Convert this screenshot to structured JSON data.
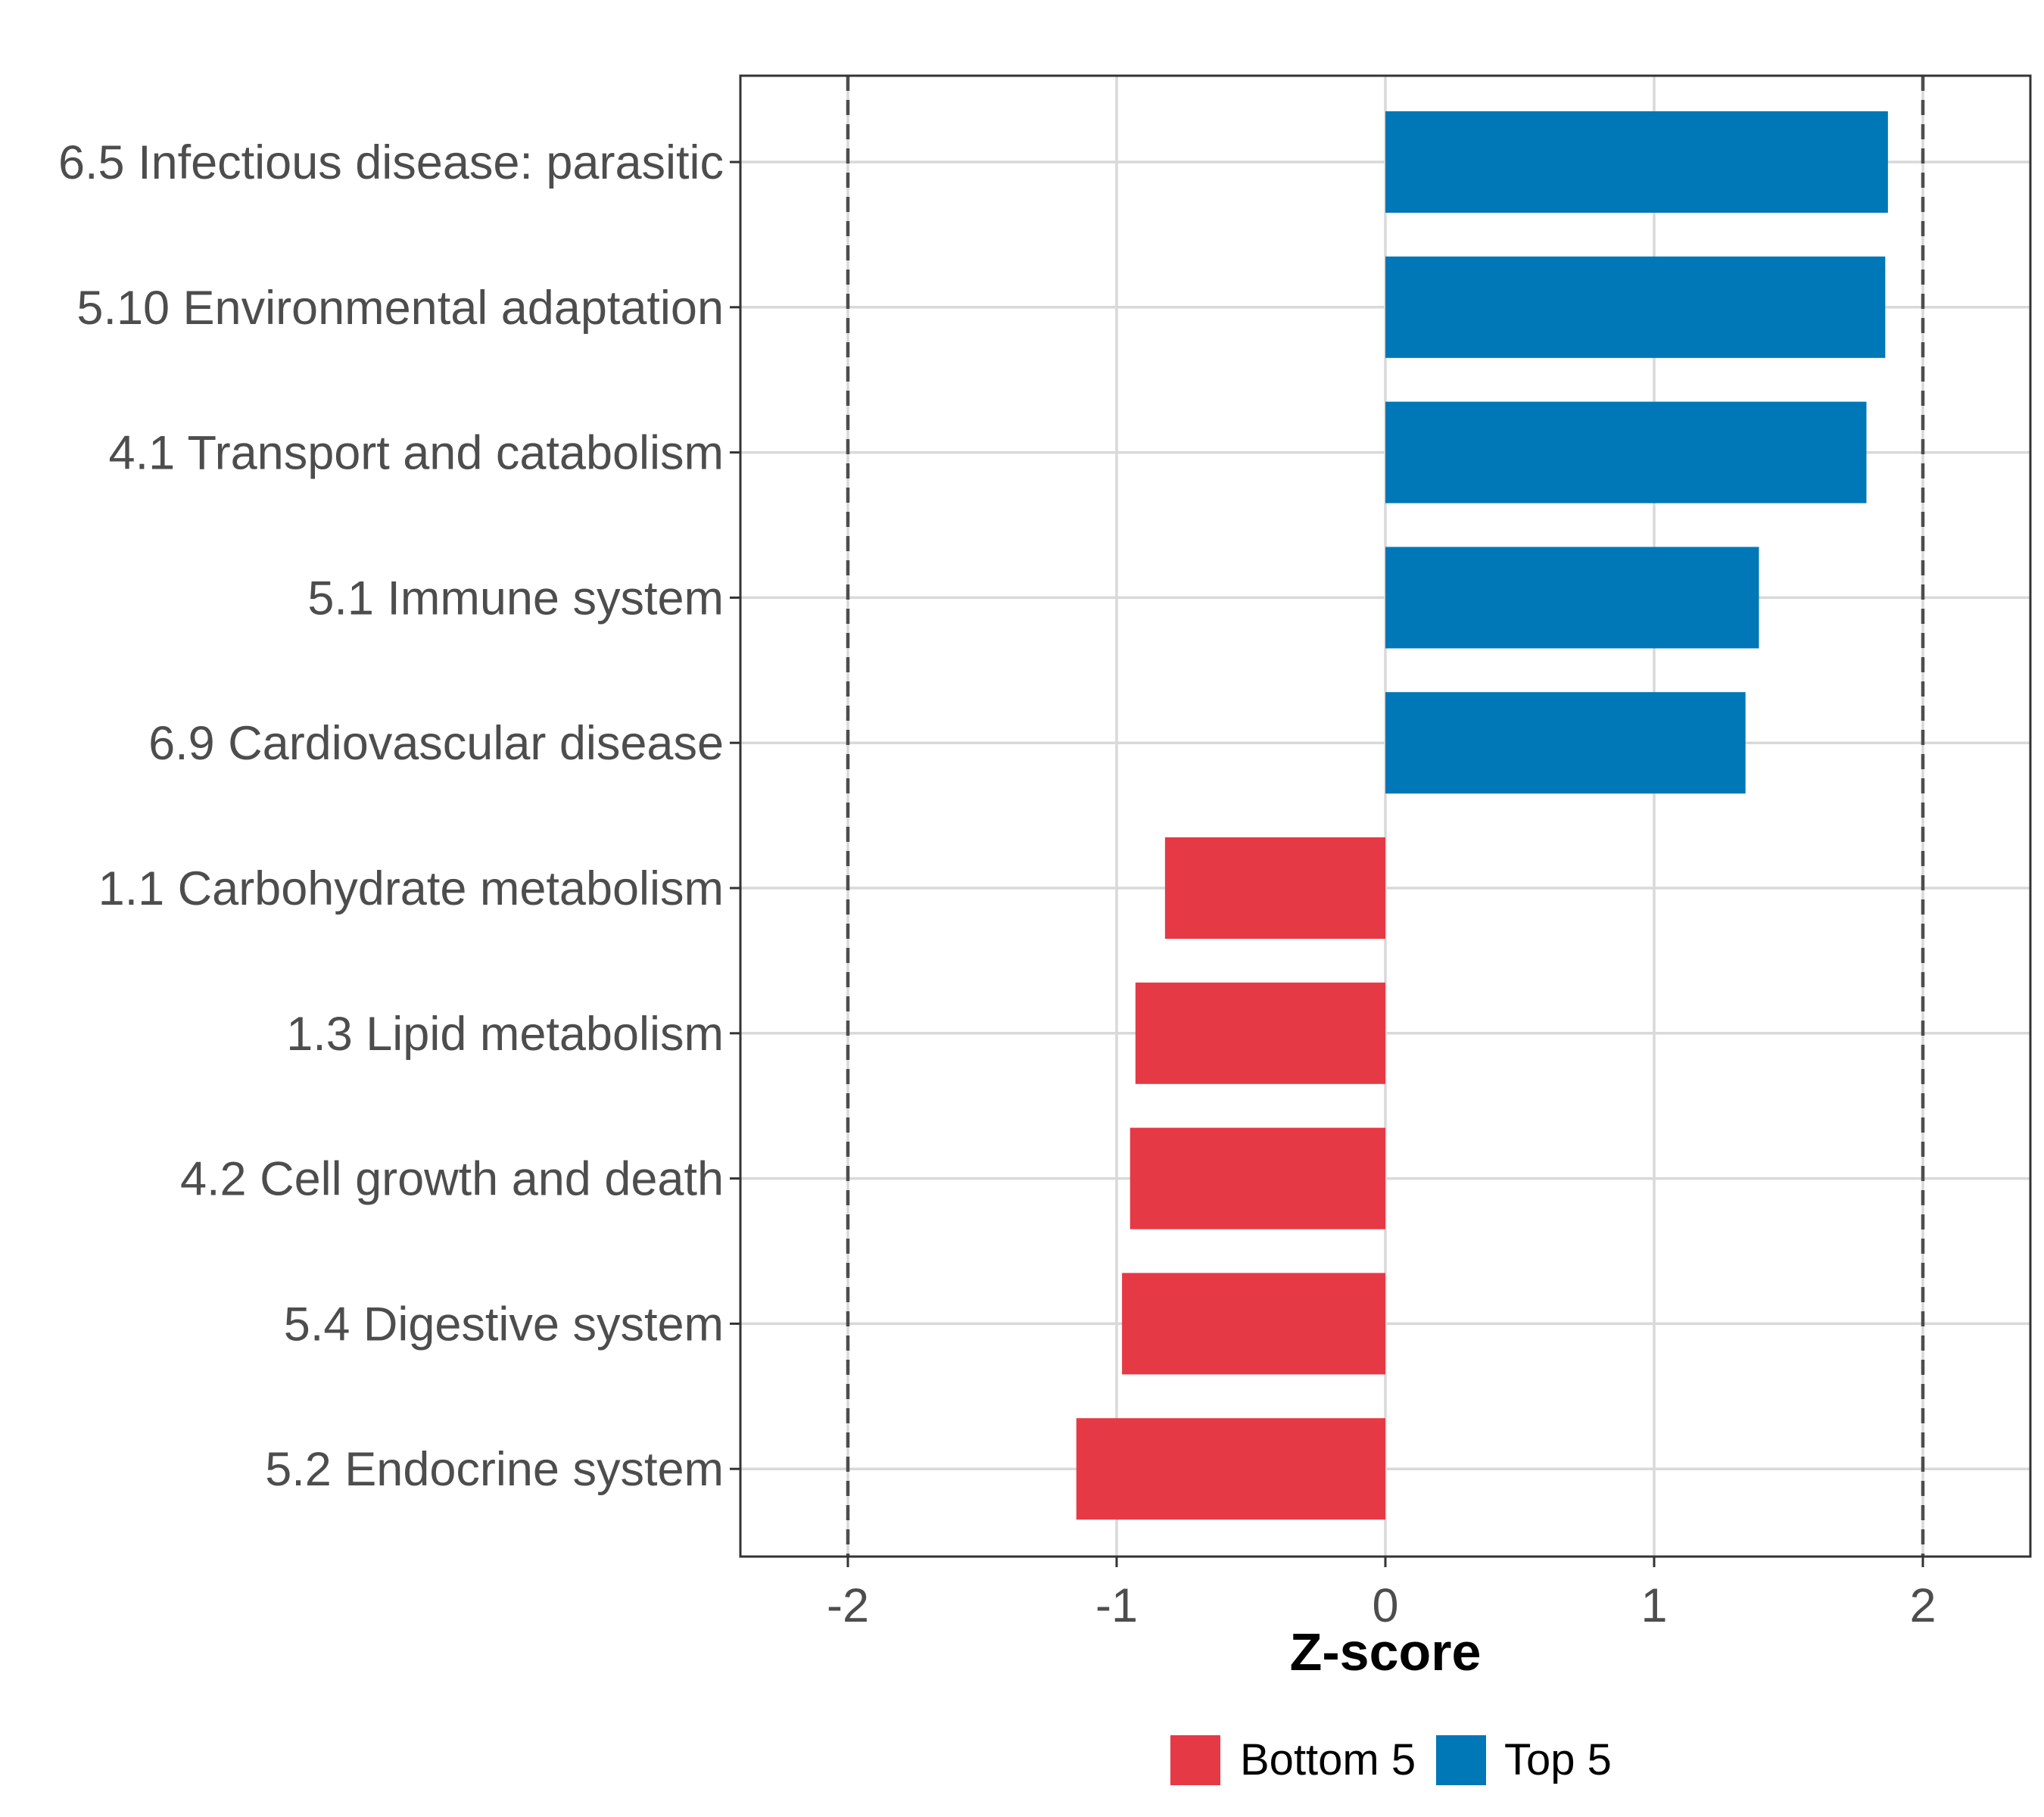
{
  "chart_data": {
    "type": "bar",
    "orientation": "horizontal",
    "title": "",
    "xlabel": "Z-score",
    "ylabel": "",
    "xlim": [
      -2.4,
      2.4
    ],
    "xticks": [
      -2,
      -1,
      0,
      1,
      2
    ],
    "xtick_labels": [
      "-2",
      "-1",
      "0",
      "1",
      "2"
    ],
    "reference_lines": [
      -2,
      2
    ],
    "grid": true,
    "categories": [
      "6.5 Infectious disease: parasitic",
      "5.10 Environmental adaptation",
      "4.1 Transport and catabolism",
      "5.1 Immune system",
      "6.9 Cardiovascular disease",
      "1.1 Carbohydrate metabolism",
      "1.3 Lipid metabolism",
      "4.2 Cell growth and death",
      "5.4 Digestive system",
      "5.2 Endocrine system"
    ],
    "values": [
      1.87,
      1.86,
      1.79,
      1.39,
      1.34,
      -0.82,
      -0.93,
      -0.95,
      -0.98,
      -1.15
    ],
    "groups": [
      "Top 5",
      "Top 5",
      "Top 5",
      "Top 5",
      "Top 5",
      "Bottom 5",
      "Bottom 5",
      "Bottom 5",
      "Bottom 5",
      "Bottom 5"
    ],
    "legend": {
      "position": "bottom",
      "entries": [
        {
          "name": "Bottom 5",
          "color": "#E63946"
        },
        {
          "name": "Top 5",
          "color": "#0077B6"
        }
      ]
    }
  }
}
